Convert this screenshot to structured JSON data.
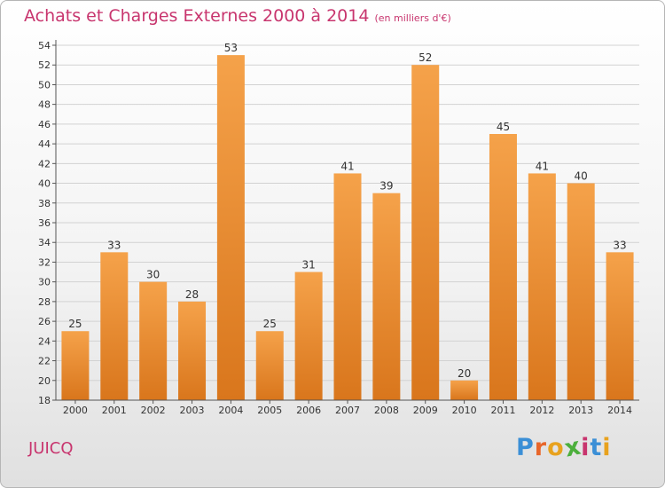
{
  "header": {
    "title": "Achats et Charges Externes 2000 à 2014",
    "unit": "(en milliers d'€)"
  },
  "footer": {
    "commune": "JUICQ",
    "logo_letters": [
      "P",
      "r",
      "o",
      "x",
      "i",
      "t",
      "i"
    ],
    "logo_colors": [
      "#3b8fd6",
      "#e8662a",
      "#e8a21e",
      "#4caf3c",
      "#c8356e",
      "#3b8fd6",
      "#e8a21e"
    ]
  },
  "chart_data": {
    "type": "bar",
    "title": "Achats et Charges Externes 2000 à 2014",
    "subtitle": "(en milliers d'€)",
    "xlabel": "",
    "ylabel": "",
    "categories": [
      "2000",
      "2001",
      "2002",
      "2003",
      "2004",
      "2005",
      "2006",
      "2007",
      "2008",
      "2009",
      "2010",
      "2011",
      "2012",
      "2013",
      "2014"
    ],
    "values": [
      25,
      33,
      30,
      28,
      53,
      25,
      31,
      41,
      39,
      52,
      20,
      45,
      41,
      40,
      33
    ],
    "ylim": [
      18,
      54
    ],
    "yticks": [
      "18",
      "20",
      "22",
      "24",
      "26",
      "28",
      "30",
      "32",
      "34",
      "36",
      "38",
      "40",
      "42",
      "44",
      "46",
      "48",
      "50",
      "52",
      "54"
    ],
    "grid": true,
    "colors": {
      "bar_light": "#f5a24a",
      "bar_dark": "#d9761c",
      "grid": "#d2d2d2",
      "axis": "#555555"
    }
  }
}
